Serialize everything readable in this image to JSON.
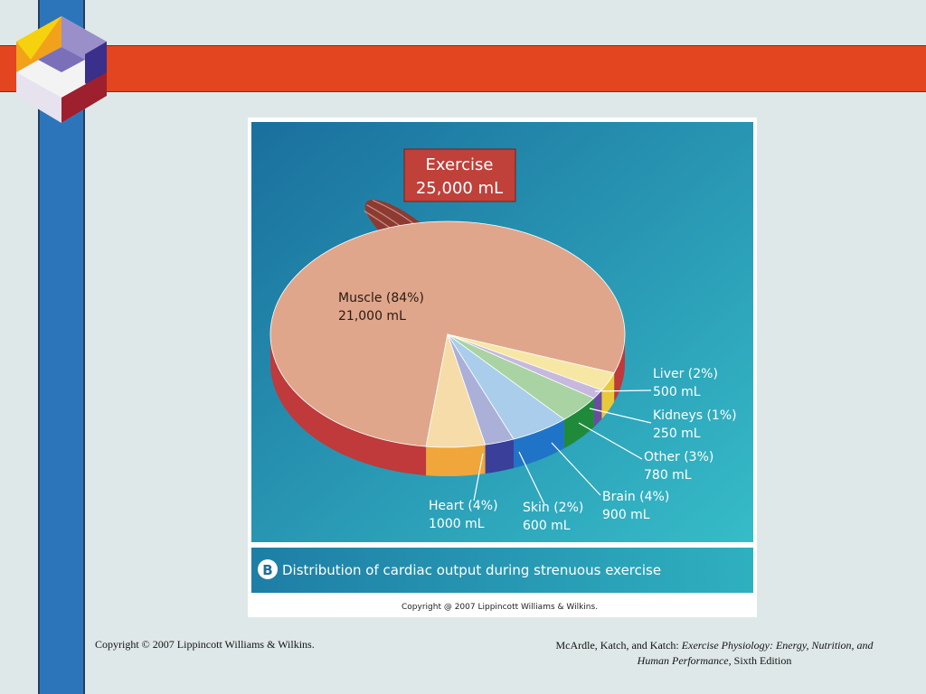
{
  "slide": {
    "footer_left": "Copyright © 2007 Lippincott Williams & Wilkins.",
    "footer_right_authors": "McArdle, Katch, and Katch: ",
    "footer_right_title": "Exercise Physiology: Energy, Nutrition, and Human Performance,",
    "footer_right_edition": " Sixth Edition"
  },
  "figure": {
    "title_line1": "Exercise",
    "title_line2": "25,000 mL",
    "caption_letter": "B",
    "caption": "Distribution of cardiac output during strenuous exercise",
    "copyright": "Copyright @ 2007 Lippincott Williams & Wilkins."
  },
  "colors": {
    "background_top": "#1f7fa8",
    "background_bottom": "#35b8c6",
    "title_box": "#c0403a",
    "muscle": "#dfa68c",
    "side": "#c0393b"
  },
  "chart_data": {
    "type": "pie",
    "total": "25,000 mL",
    "slices": [
      {
        "name": "Muscle",
        "percent": 84,
        "value_ml": 21000,
        "label1": "Muscle (84%)",
        "label2": "21,000 mL",
        "top": "#dfa68c",
        "side": "#c0393b"
      },
      {
        "name": "Liver",
        "percent": 2,
        "value_ml": 500,
        "label1": "Liver (2%)",
        "label2": "500 mL",
        "top": "#f6e7a4",
        "side": "#e8c93a"
      },
      {
        "name": "Kidneys",
        "percent": 1,
        "value_ml": 250,
        "label1": "Kidneys (1%)",
        "label2": "250 mL",
        "top": "#c7b9dd",
        "side": "#6a4da0"
      },
      {
        "name": "Other",
        "percent": 3,
        "value_ml": 780,
        "label1": "Other (3%)",
        "label2": "780 mL",
        "top": "#a9d3a3",
        "side": "#1f8a3a"
      },
      {
        "name": "Brain",
        "percent": 4,
        "value_ml": 900,
        "label1": "Brain (4%)",
        "label2": "900 mL",
        "top": "#a9cdea",
        "side": "#1f74c8"
      },
      {
        "name": "Skin",
        "percent": 2,
        "value_ml": 600,
        "label1": "Skin (2%)",
        "label2": "600 mL",
        "top": "#aab0d8",
        "side": "#3a3f9a"
      },
      {
        "name": "Heart",
        "percent": 4,
        "value_ml": 1000,
        "label1": "Heart (4%)",
        "label2": "1000 mL",
        "top": "#f6dca8",
        "side": "#f0a63a"
      }
    ]
  }
}
